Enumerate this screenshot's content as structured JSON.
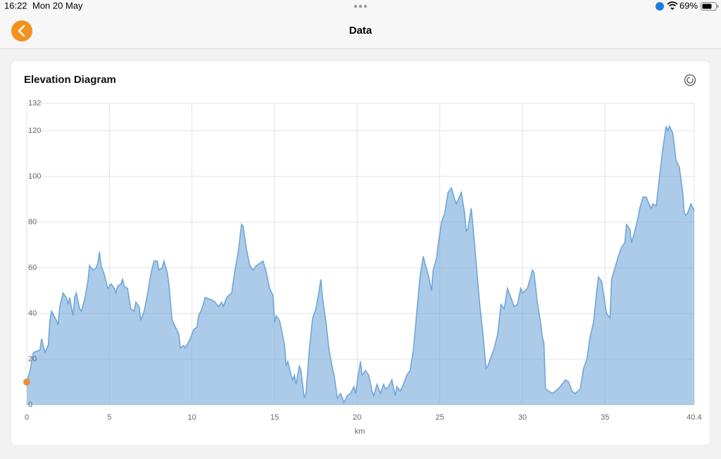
{
  "status": {
    "time": "16:22",
    "date": "Mon 20 May",
    "battery": "69%"
  },
  "nav": {
    "title": "Data"
  },
  "chart_data": {
    "type": "area",
    "title": "Elevation Diagram",
    "xlabel": "km",
    "xlim": [
      0,
      40.4
    ],
    "ylim": [
      0,
      132
    ],
    "xticks": [
      0,
      5,
      10,
      15,
      20,
      25,
      30,
      35,
      40.4
    ],
    "yticks": [
      0,
      20,
      40,
      60,
      80,
      100,
      120,
      132
    ],
    "grid": true,
    "series": [
      {
        "color": "#6fa6d8",
        "x": [
          0,
          0.2,
          0.4,
          0.8,
          0.9,
          1.1,
          1.3,
          1.4,
          1.5,
          1.8,
          1.9,
          2.0,
          2.2,
          2.4,
          2.5,
          2.6,
          2.8,
          2.9,
          3.0,
          3.2,
          3.3,
          3.5,
          3.7,
          3.8,
          4.0,
          4.2,
          4.3,
          4.4,
          4.5,
          4.7,
          4.9,
          5.1,
          5.3,
          5.4,
          5.5,
          5.7,
          5.8,
          5.9,
          6.1,
          6.3,
          6.5,
          6.6,
          6.8,
          6.9,
          7.1,
          7.3,
          7.5,
          7.7,
          7.9,
          8.0,
          8.2,
          8.3,
          8.5,
          8.6,
          8.8,
          9.0,
          9.2,
          9.3,
          9.5,
          9.6,
          9.9,
          10.1,
          10.3,
          10.4,
          10.6,
          10.8,
          11.2,
          11.4,
          11.6,
          11.8,
          11.9,
          12.1,
          12.4,
          12.6,
          12.8,
          13.0,
          13.1,
          13.3,
          13.5,
          13.7,
          13.9,
          14.1,
          14.3,
          14.5,
          14.7,
          14.9,
          15.0,
          15.1,
          15.3,
          15.5,
          15.6,
          15.7,
          15.8,
          16.0,
          16.1,
          16.2,
          16.3,
          16.5,
          16.6,
          16.8,
          16.9,
          17.1,
          17.3,
          17.5,
          17.7,
          17.8,
          17.9,
          18.1,
          18.3,
          18.5,
          18.6,
          18.8,
          19.0,
          19.2,
          19.4,
          19.6,
          19.8,
          19.9,
          20.0,
          20.2,
          20.3,
          20.5,
          20.7,
          20.9,
          21.0,
          21.2,
          21.4,
          21.6,
          21.7,
          21.9,
          22.1,
          22.3,
          22.4,
          22.6,
          22.8,
          23.0,
          23.2,
          23.4,
          23.6,
          23.8,
          24.0,
          24.1,
          24.3,
          24.5,
          24.6,
          24.8,
          24.9,
          25.1,
          25.3,
          25.5,
          25.7,
          25.9,
          26.0,
          26.3,
          26.5,
          26.6,
          26.7,
          26.9,
          27.0,
          27.2,
          27.4,
          27.6,
          27.8,
          27.9,
          28.1,
          28.3,
          28.5,
          28.7,
          28.9,
          29.1,
          29.3,
          29.5,
          29.7,
          29.9,
          30.0,
          30.3,
          30.5,
          30.6,
          30.7,
          30.9,
          31.1,
          31.2,
          31.3,
          31.4,
          31.6,
          31.8,
          32.0,
          32.3,
          32.6,
          32.8,
          33.0,
          33.2,
          33.5,
          33.7,
          33.9,
          34.1,
          34.3,
          34.5,
          34.6,
          34.8,
          35.0,
          35.1,
          35.3,
          35.4,
          35.6,
          35.8,
          36.0,
          36.2,
          36.3,
          36.5,
          36.6,
          36.8,
          37.0,
          37.1,
          37.3,
          37.5,
          37.6,
          37.8,
          37.9,
          38.1,
          38.3,
          38.5,
          38.7,
          38.8,
          38.9,
          39.1,
          39.3,
          39.5,
          39.7,
          39.8,
          39.9,
          40.0,
          40.2,
          40.4
        ],
        "values": [
          10,
          15,
          23,
          24,
          29,
          23,
          26,
          37,
          41,
          37,
          35,
          43,
          49,
          47,
          44,
          47,
          39,
          47,
          49,
          42,
          41,
          46,
          54,
          61,
          59,
          60,
          62,
          67,
          61,
          57,
          51,
          53,
          51,
          49,
          52,
          53,
          55,
          52,
          51,
          42,
          41,
          45,
          43,
          37,
          41,
          48,
          57,
          63,
          63,
          59,
          60,
          63,
          58,
          53,
          37,
          34,
          31,
          25,
          26,
          25,
          29,
          33,
          34,
          39,
          42,
          47,
          46,
          45,
          43,
          45,
          43,
          47,
          49,
          59,
          67,
          79,
          78,
          68,
          61,
          59,
          61,
          62,
          63,
          58,
          51,
          48,
          36,
          39,
          37,
          30,
          26,
          17,
          19,
          13,
          11,
          13,
          9,
          17,
          15,
          3,
          5,
          24,
          38,
          42,
          50,
          55,
          47,
          37,
          24,
          16,
          13,
          3,
          5,
          1,
          4,
          5,
          8,
          5,
          10,
          19,
          13,
          15,
          13,
          6,
          4,
          9,
          5,
          9,
          7,
          8,
          11,
          4,
          8,
          6,
          9,
          13,
          15,
          24,
          40,
          56,
          65,
          62,
          57,
          50,
          59,
          64,
          70,
          80,
          84,
          93,
          95,
          90,
          88,
          93,
          84,
          76,
          77,
          86,
          79,
          62,
          45,
          32,
          16,
          17,
          21,
          25,
          31,
          44,
          42,
          51,
          47,
          43,
          44,
          51,
          49,
          51,
          56,
          59,
          58,
          45,
          36,
          30,
          27,
          7,
          6,
          5,
          6,
          8,
          11,
          10,
          6,
          5,
          7,
          16,
          20,
          30,
          36,
          50,
          56,
          54,
          44,
          40,
          38,
          55,
          60,
          65,
          69,
          71,
          79,
          77,
          71,
          76,
          82,
          86,
          91,
          91,
          89,
          86,
          88,
          87,
          100,
          112,
          122,
          120,
          122,
          119,
          107,
          104,
          93,
          84,
          83,
          84,
          88,
          85
        ]
      }
    ]
  }
}
